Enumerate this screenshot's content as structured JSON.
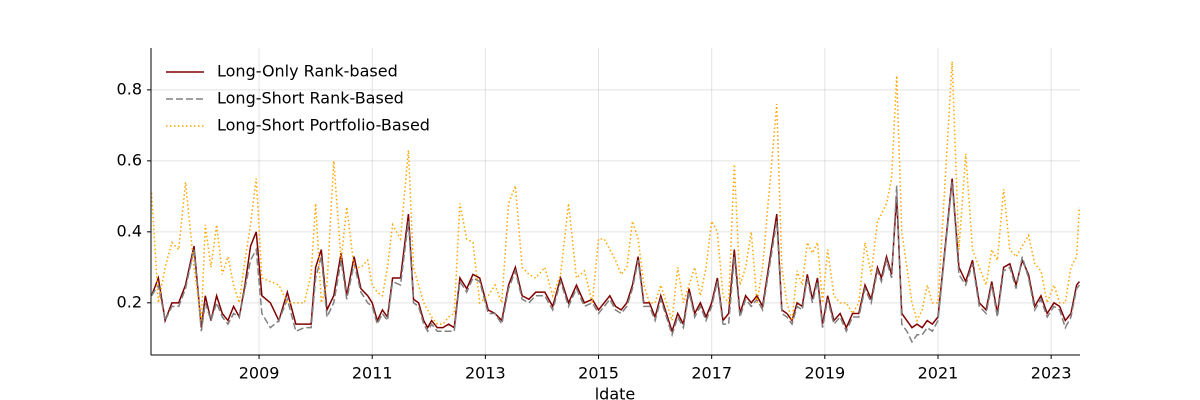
{
  "chart_data": {
    "type": "line",
    "xlabel": "ldate",
    "x": [
      2007.1,
      2007.22,
      2007.34,
      2007.46,
      2007.58,
      2007.7,
      2007.85,
      2007.98,
      2008.05,
      2008.15,
      2008.25,
      2008.35,
      2008.45,
      2008.55,
      2008.65,
      2008.75,
      2008.85,
      2008.95,
      2009.05,
      2009.2,
      2009.35,
      2009.5,
      2009.65,
      2009.8,
      2009.92,
      2010.0,
      2010.1,
      2010.2,
      2010.32,
      2010.45,
      2010.55,
      2010.68,
      2010.8,
      2010.92,
      2011.0,
      2011.09,
      2011.18,
      2011.27,
      2011.36,
      2011.5,
      2011.64,
      2011.73,
      2011.82,
      2011.91,
      2011.98,
      2012.05,
      2012.15,
      2012.25,
      2012.35,
      2012.45,
      2012.55,
      2012.67,
      2012.78,
      2012.9,
      2013.05,
      2013.17,
      2013.29,
      2013.41,
      2013.53,
      2013.65,
      2013.77,
      2013.89,
      2014.05,
      2014.19,
      2014.33,
      2014.47,
      2014.61,
      2014.75,
      2014.89,
      2015.0,
      2015.1,
      2015.2,
      2015.3,
      2015.4,
      2015.5,
      2015.6,
      2015.7,
      2015.8,
      2015.9,
      2016.0,
      2016.1,
      2016.2,
      2016.3,
      2016.4,
      2016.5,
      2016.6,
      2016.7,
      2016.8,
      2016.9,
      2017.0,
      2017.1,
      2017.2,
      2017.3,
      2017.4,
      2017.5,
      2017.6,
      2017.7,
      2017.8,
      2017.9,
      2018.15,
      2018.24,
      2018.33,
      2018.42,
      2018.51,
      2018.6,
      2018.69,
      2018.78,
      2018.87,
      2018.96,
      2019.05,
      2019.16,
      2019.27,
      2019.38,
      2019.49,
      2019.6,
      2019.71,
      2019.82,
      2019.93,
      2020.0,
      2020.09,
      2020.18,
      2020.27,
      2020.36,
      2020.45,
      2020.54,
      2020.63,
      2020.72,
      2020.81,
      2020.9,
      2021.0,
      2021.25,
      2021.37,
      2021.49,
      2021.61,
      2021.73,
      2021.85,
      2021.95,
      2022.05,
      2022.16,
      2022.27,
      2022.38,
      2022.49,
      2022.6,
      2022.71,
      2022.82,
      2022.93,
      2023.05,
      2023.15,
      2023.25,
      2023.35,
      2023.45,
      2023.5
    ],
    "series": [
      {
        "name": "Long-Only Rank-based",
        "color": "#800000",
        "dash": "solid",
        "values": [
          0.22,
          0.27,
          0.15,
          0.2,
          0.2,
          0.25,
          0.36,
          0.13,
          0.22,
          0.15,
          0.22,
          0.17,
          0.15,
          0.19,
          0.16,
          0.25,
          0.36,
          0.4,
          0.22,
          0.2,
          0.15,
          0.23,
          0.14,
          0.14,
          0.14,
          0.3,
          0.35,
          0.18,
          0.22,
          0.34,
          0.22,
          0.33,
          0.24,
          0.22,
          0.2,
          0.15,
          0.18,
          0.16,
          0.27,
          0.27,
          0.45,
          0.21,
          0.2,
          0.15,
          0.13,
          0.15,
          0.13,
          0.13,
          0.14,
          0.13,
          0.27,
          0.24,
          0.28,
          0.27,
          0.18,
          0.17,
          0.15,
          0.25,
          0.3,
          0.22,
          0.21,
          0.23,
          0.23,
          0.19,
          0.27,
          0.2,
          0.25,
          0.2,
          0.21,
          0.18,
          0.2,
          0.22,
          0.19,
          0.18,
          0.2,
          0.25,
          0.33,
          0.2,
          0.2,
          0.16,
          0.22,
          0.17,
          0.12,
          0.17,
          0.14,
          0.24,
          0.17,
          0.2,
          0.16,
          0.2,
          0.27,
          0.15,
          0.17,
          0.35,
          0.17,
          0.22,
          0.2,
          0.22,
          0.19,
          0.45,
          0.18,
          0.17,
          0.15,
          0.2,
          0.19,
          0.28,
          0.21,
          0.27,
          0.14,
          0.22,
          0.15,
          0.17,
          0.13,
          0.17,
          0.17,
          0.25,
          0.21,
          0.3,
          0.27,
          0.33,
          0.28,
          0.5,
          0.17,
          0.15,
          0.13,
          0.14,
          0.13,
          0.15,
          0.14,
          0.16,
          0.55,
          0.3,
          0.26,
          0.32,
          0.2,
          0.18,
          0.26,
          0.17,
          0.3,
          0.31,
          0.25,
          0.32,
          0.28,
          0.19,
          0.22,
          0.17,
          0.2,
          0.19,
          0.15,
          0.17,
          0.25,
          0.26
        ]
      },
      {
        "name": "Long-Short Rank-Based",
        "color": "#808080",
        "dash": "dashed",
        "values": [
          0.22,
          0.25,
          0.15,
          0.19,
          0.19,
          0.24,
          0.35,
          0.12,
          0.2,
          0.15,
          0.2,
          0.16,
          0.14,
          0.17,
          0.16,
          0.24,
          0.32,
          0.35,
          0.17,
          0.13,
          0.15,
          0.21,
          0.12,
          0.13,
          0.13,
          0.27,
          0.33,
          0.16,
          0.2,
          0.32,
          0.21,
          0.31,
          0.23,
          0.2,
          0.19,
          0.14,
          0.17,
          0.15,
          0.26,
          0.25,
          0.43,
          0.2,
          0.19,
          0.14,
          0.12,
          0.14,
          0.12,
          0.12,
          0.12,
          0.12,
          0.26,
          0.23,
          0.27,
          0.26,
          0.17,
          0.17,
          0.14,
          0.24,
          0.29,
          0.21,
          0.2,
          0.22,
          0.22,
          0.18,
          0.26,
          0.19,
          0.24,
          0.19,
          0.2,
          0.17,
          0.19,
          0.21,
          0.18,
          0.17,
          0.19,
          0.24,
          0.32,
          0.19,
          0.19,
          0.15,
          0.21,
          0.16,
          0.11,
          0.16,
          0.13,
          0.23,
          0.16,
          0.19,
          0.15,
          0.19,
          0.26,
          0.14,
          0.14,
          0.33,
          0.16,
          0.21,
          0.19,
          0.21,
          0.18,
          0.43,
          0.17,
          0.16,
          0.14,
          0.19,
          0.18,
          0.27,
          0.2,
          0.26,
          0.13,
          0.21,
          0.14,
          0.16,
          0.12,
          0.16,
          0.16,
          0.24,
          0.2,
          0.29,
          0.26,
          0.32,
          0.27,
          0.53,
          0.14,
          0.12,
          0.09,
          0.11,
          0.11,
          0.13,
          0.12,
          0.15,
          0.54,
          0.28,
          0.25,
          0.31,
          0.19,
          0.17,
          0.25,
          0.16,
          0.29,
          0.3,
          0.24,
          0.33,
          0.27,
          0.18,
          0.21,
          0.16,
          0.19,
          0.18,
          0.13,
          0.16,
          0.24,
          0.25
        ]
      },
      {
        "name": "Long-Short Portfolio-Based",
        "color": "#ffa500",
        "dash": "dotted",
        "values": [
          0.51,
          0.2,
          0.3,
          0.37,
          0.35,
          0.54,
          0.3,
          0.15,
          0.42,
          0.3,
          0.42,
          0.28,
          0.33,
          0.25,
          0.2,
          0.32,
          0.42,
          0.55,
          0.27,
          0.26,
          0.25,
          0.2,
          0.2,
          0.2,
          0.28,
          0.48,
          0.2,
          0.25,
          0.6,
          0.32,
          0.47,
          0.3,
          0.3,
          0.32,
          0.25,
          0.23,
          0.22,
          0.3,
          0.42,
          0.38,
          0.63,
          0.3,
          0.25,
          0.2,
          0.18,
          0.16,
          0.14,
          0.14,
          0.16,
          0.17,
          0.48,
          0.38,
          0.37,
          0.2,
          0.22,
          0.25,
          0.2,
          0.48,
          0.53,
          0.3,
          0.28,
          0.27,
          0.3,
          0.22,
          0.28,
          0.48,
          0.27,
          0.29,
          0.2,
          0.38,
          0.38,
          0.35,
          0.32,
          0.28,
          0.3,
          0.43,
          0.38,
          0.25,
          0.2,
          0.2,
          0.25,
          0.2,
          0.15,
          0.3,
          0.2,
          0.25,
          0.3,
          0.22,
          0.3,
          0.43,
          0.4,
          0.22,
          0.2,
          0.59,
          0.25,
          0.3,
          0.4,
          0.2,
          0.3,
          0.76,
          0.3,
          0.2,
          0.15,
          0.29,
          0.25,
          0.37,
          0.34,
          0.37,
          0.2,
          0.35,
          0.22,
          0.2,
          0.2,
          0.17,
          0.2,
          0.37,
          0.28,
          0.43,
          0.45,
          0.48,
          0.55,
          0.84,
          0.4,
          0.3,
          0.2,
          0.15,
          0.18,
          0.25,
          0.2,
          0.2,
          0.88,
          0.35,
          0.62,
          0.35,
          0.3,
          0.25,
          0.35,
          0.32,
          0.52,
          0.35,
          0.33,
          0.36,
          0.39,
          0.31,
          0.29,
          0.2,
          0.25,
          0.2,
          0.2,
          0.3,
          0.33,
          0.47
        ]
      }
    ],
    "xlim": [
      2007.09,
      2023.51
    ],
    "xticks": [
      2009,
      2011,
      2013,
      2015,
      2017,
      2019,
      2021,
      2023
    ],
    "ylim": [
      0.053,
      0.918
    ],
    "yticks": [
      0.2,
      0.4,
      0.6,
      0.8
    ],
    "grid": true,
    "legend": "upper left"
  }
}
